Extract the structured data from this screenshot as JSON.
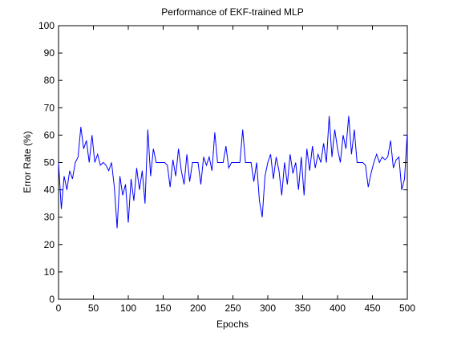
{
  "chart_data": {
    "type": "line",
    "title": "Performance of EKF-trained MLP",
    "xlabel": "Epochs",
    "ylabel": "Error Rate (%)",
    "color": "#0000ff",
    "x": [
      0,
      4,
      8,
      12,
      16,
      20,
      24,
      28,
      32,
      36,
      40,
      44,
      48,
      52,
      56,
      60,
      64,
      68,
      72,
      76,
      80,
      84,
      88,
      92,
      96,
      100,
      104,
      108,
      112,
      116,
      120,
      124,
      128,
      132,
      136,
      140,
      144,
      148,
      152,
      156,
      160,
      164,
      168,
      172,
      176,
      180,
      184,
      188,
      192,
      196,
      200,
      204,
      208,
      212,
      216,
      220,
      224,
      228,
      232,
      236,
      240,
      244,
      248,
      252,
      256,
      260,
      264,
      268,
      272,
      276,
      280,
      284,
      288,
      292,
      296,
      300,
      304,
      308,
      312,
      316,
      320,
      324,
      328,
      332,
      336,
      340,
      344,
      348,
      352,
      356,
      360,
      364,
      368,
      372,
      376,
      380,
      384,
      388,
      392,
      396,
      400,
      404,
      408,
      412,
      416,
      420,
      424,
      428,
      432,
      436,
      440,
      444,
      448,
      452,
      456,
      460,
      464,
      468,
      472,
      476,
      480,
      484,
      488,
      492,
      496,
      500
    ],
    "values": [
      50,
      33,
      45,
      40,
      47,
      44,
      50,
      52,
      63,
      55,
      58,
      50,
      60,
      50,
      53,
      49,
      50,
      49,
      47,
      50,
      41,
      26,
      45,
      38,
      42,
      28,
      44,
      36,
      48,
      40,
      47,
      35,
      62,
      45,
      55,
      50,
      50,
      50,
      50,
      49,
      41,
      51,
      45,
      55,
      47,
      42,
      53,
      43,
      50,
      50,
      50,
      42,
      52,
      49,
      52,
      47,
      61,
      50,
      50,
      50,
      56,
      48,
      50,
      50,
      50,
      50,
      62,
      50,
      50,
      50,
      43,
      50,
      36,
      30,
      45,
      50,
      53,
      44,
      52,
      47,
      38,
      50,
      42,
      53,
      46,
      50,
      40,
      52,
      38,
      55,
      47,
      56,
      48,
      53,
      50,
      57,
      50,
      67,
      52,
      62,
      55,
      50,
      60,
      55,
      67,
      53,
      62,
      50,
      50,
      50,
      49,
      41,
      46,
      50,
      53,
      50,
      52,
      51,
      52,
      58,
      48,
      51,
      52,
      40,
      44,
      61
    ],
    "xlim": [
      0,
      500
    ],
    "xticks": [
      0,
      50,
      100,
      150,
      200,
      250,
      300,
      350,
      400,
      450,
      500
    ],
    "ylim": [
      0,
      100
    ],
    "yticks": [
      0,
      10,
      20,
      30,
      40,
      50,
      60,
      70,
      80,
      90,
      100
    ]
  }
}
